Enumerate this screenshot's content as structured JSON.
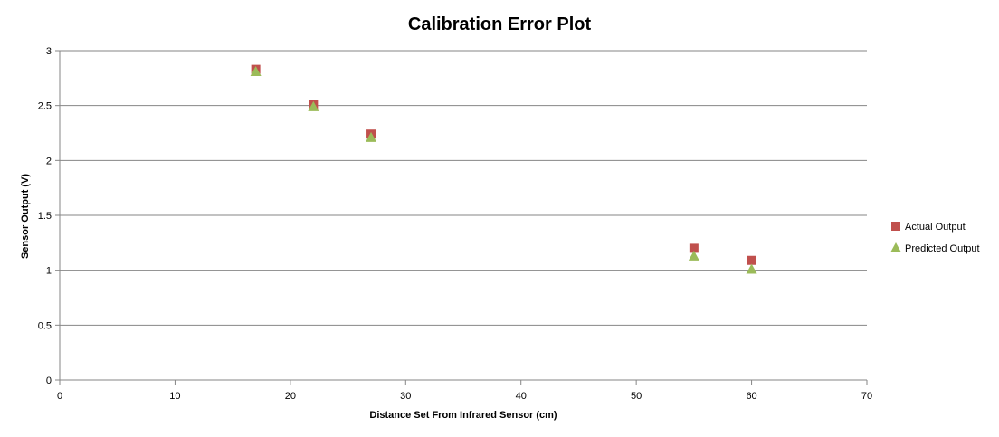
{
  "colors": {
    "actual": "#C0504D",
    "predicted": "#9BBB59",
    "gridline": "#868686",
    "axis": "#868686"
  },
  "chart_data": {
    "type": "scatter",
    "title": "Calibration Error Plot",
    "xlabel": "Distance Set From Infrared Sensor (cm)",
    "ylabel": "Sensor Output (V)",
    "xlim": [
      0,
      70
    ],
    "ylim": [
      0,
      3
    ],
    "xticks": [
      0,
      10,
      20,
      30,
      40,
      50,
      60,
      70
    ],
    "yticks": [
      0,
      0.5,
      1,
      1.5,
      2,
      2.5,
      3
    ],
    "grid": "horizontal major gridlines",
    "legend": "right",
    "series": [
      {
        "name": "Actual Output",
        "marker": "square",
        "color": "#C0504D",
        "x": [
          17,
          22,
          27,
          55,
          60
        ],
        "y": [
          2.83,
          2.51,
          2.24,
          1.2,
          1.09
        ]
      },
      {
        "name": "Predicted Output",
        "marker": "triangle",
        "color": "#9BBB59",
        "x": [
          17,
          22,
          27,
          55,
          60
        ],
        "y": [
          2.81,
          2.49,
          2.21,
          1.13,
          1.01
        ]
      }
    ]
  }
}
